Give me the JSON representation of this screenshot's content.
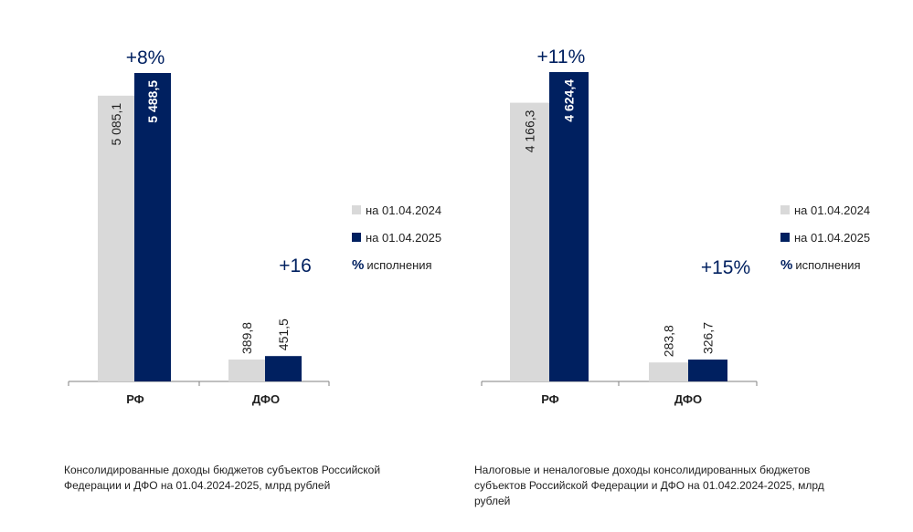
{
  "colors": {
    "prev": "#d9d9d9",
    "curr": "#002060",
    "text": "#1f1f1f",
    "axis": "#808080"
  },
  "legend": {
    "prev_label": "на 01.04.2024",
    "curr_label": "на 01.04.2025",
    "pct_symbol": "%",
    "pct_label": "исполнения"
  },
  "chart_data": [
    {
      "type": "bar",
      "categories": [
        "РФ",
        "ДФО"
      ],
      "series": [
        {
          "name": "на 01.04.2024",
          "values": [
            5085.1,
            389.8
          ],
          "labels": [
            "5 085,1",
            "389,8"
          ]
        },
        {
          "name": "на 01.04.2025",
          "values": [
            5488.5,
            451.5
          ],
          "labels": [
            "5 488,5",
            "451,5"
          ]
        }
      ],
      "growth_labels": [
        "+8%",
        "+16"
      ],
      "ylim": [
        0,
        5488.5
      ],
      "caption": "Консолидированные доходы бюджетов субъектов Российской Федерации и ДФО на 01.04.2024-2025, млрд рублей"
    },
    {
      "type": "bar",
      "categories": [
        "РФ",
        "ДФО"
      ],
      "series": [
        {
          "name": "на 01.04.2024",
          "values": [
            4166.3,
            283.8
          ],
          "labels": [
            "4 166,3",
            "283,8"
          ]
        },
        {
          "name": "на 01.04.2025",
          "values": [
            4624.4,
            326.7
          ],
          "labels": [
            "4 624,4",
            "326,7"
          ]
        }
      ],
      "growth_labels": [
        "+11%",
        "+15%"
      ],
      "ylim": [
        0,
        4624.4
      ],
      "caption": "Налоговые и неналоговые доходы консолидированных бюджетов субъектов Российской Федерации и ДФО на 01.042.2024-2025, млрд рублей"
    }
  ]
}
